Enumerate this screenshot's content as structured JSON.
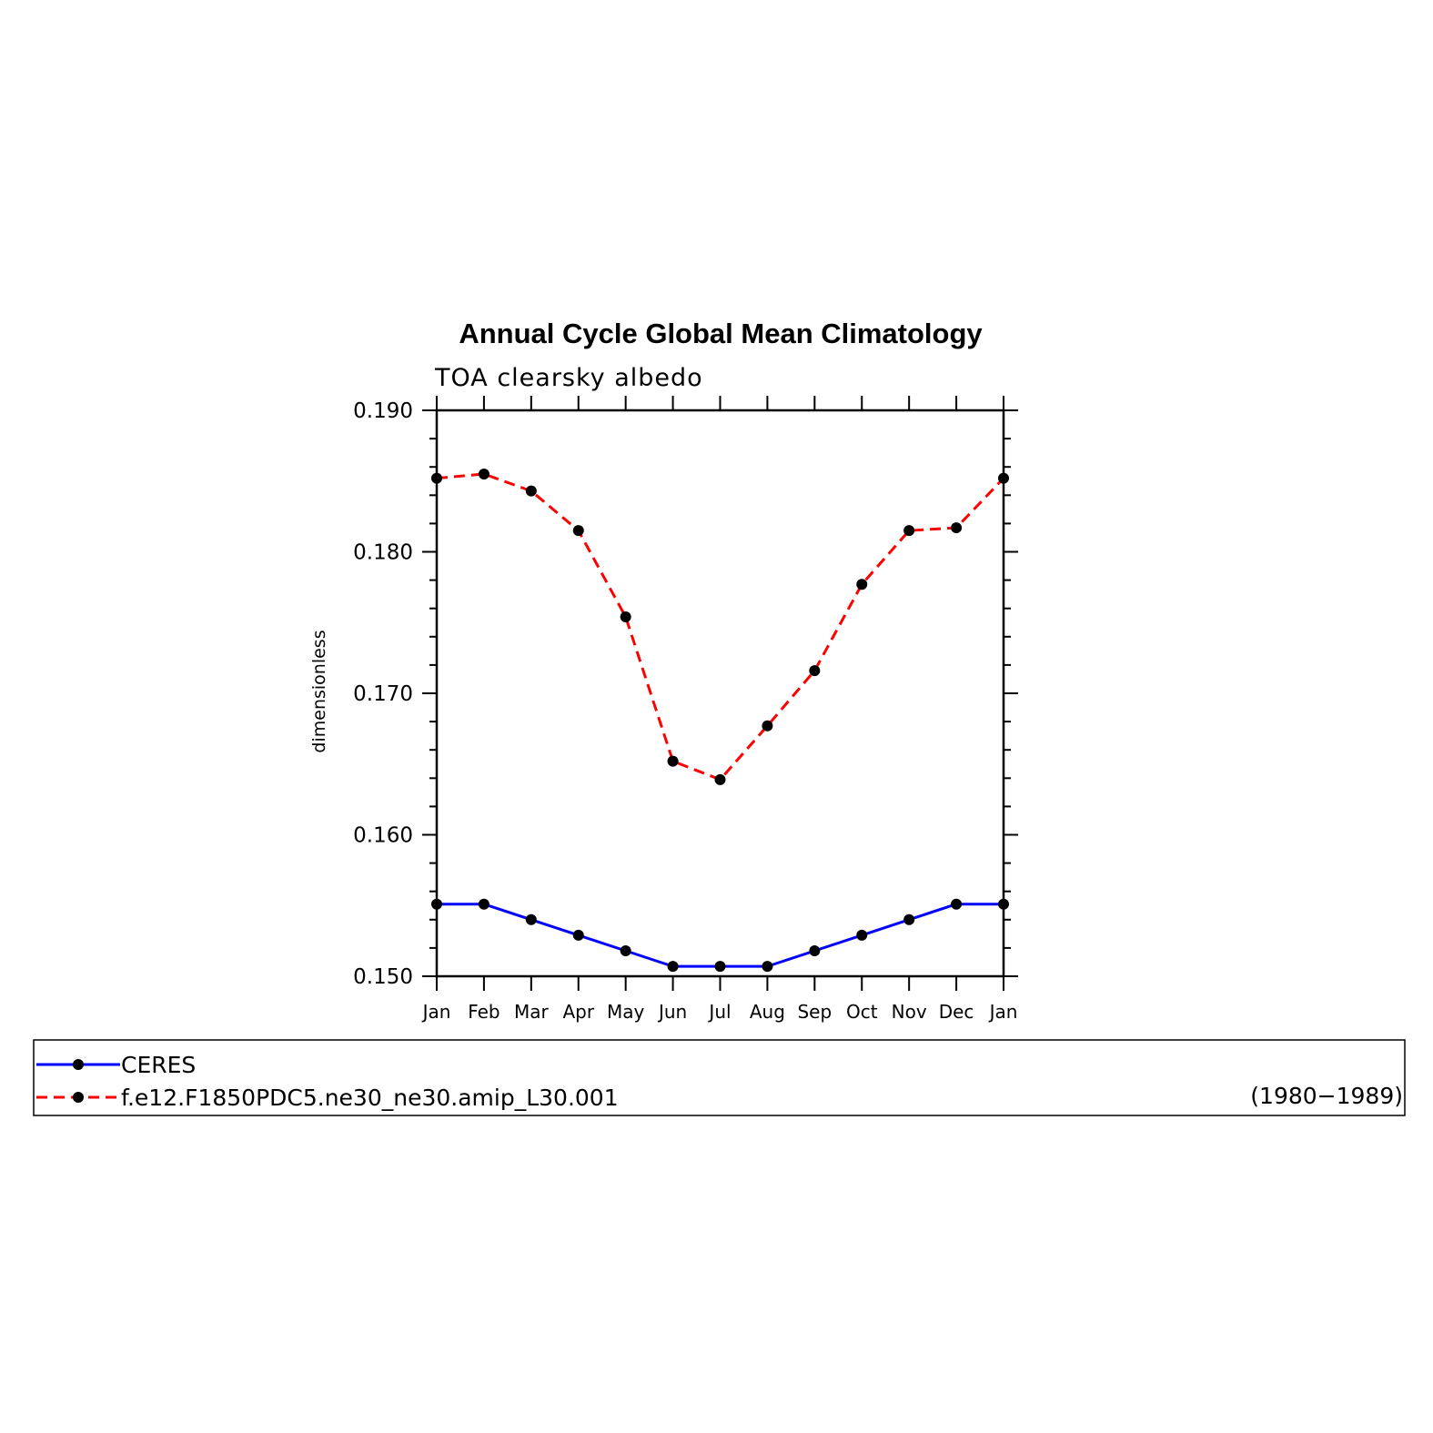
{
  "chart_data": {
    "type": "line",
    "title": "Annual Cycle Global Mean Climatology",
    "subtitle": "TOA clearsky albedo",
    "ylabel": "dimensionless",
    "xlabel": "",
    "categories": [
      "Jan",
      "Feb",
      "Mar",
      "Apr",
      "May",
      "Jun",
      "Jul",
      "Aug",
      "Sep",
      "Oct",
      "Nov",
      "Dec",
      "Jan"
    ],
    "ylim": [
      0.15,
      0.19
    ],
    "yticks": [
      "0.150",
      "0.160",
      "0.170",
      "0.180",
      "0.190"
    ],
    "grid": false,
    "series": [
      {
        "name": "CERES",
        "color": "#0000ff",
        "style": "solid",
        "values": [
          0.1551,
          0.1551,
          0.154,
          0.1529,
          0.1518,
          0.1507,
          0.1507,
          0.1507,
          0.1518,
          0.1529,
          0.154,
          0.1551,
          0.1551
        ]
      },
      {
        "name": "f.e12.F1850PDC5.ne30_ne30.amip_L30.001",
        "color": "#ff0000",
        "style": "dashed",
        "values": [
          0.1852,
          0.1855,
          0.1843,
          0.1815,
          0.1754,
          0.1652,
          0.1639,
          0.1677,
          0.1716,
          0.1777,
          0.1815,
          0.1817,
          0.1852
        ]
      }
    ],
    "legend": {
      "placement": "bottom",
      "entries": [
        "CERES",
        "f.e12.F1850PDC5.ne30_ne30.amip_L30.001"
      ],
      "years": "(1980−1989)"
    }
  }
}
